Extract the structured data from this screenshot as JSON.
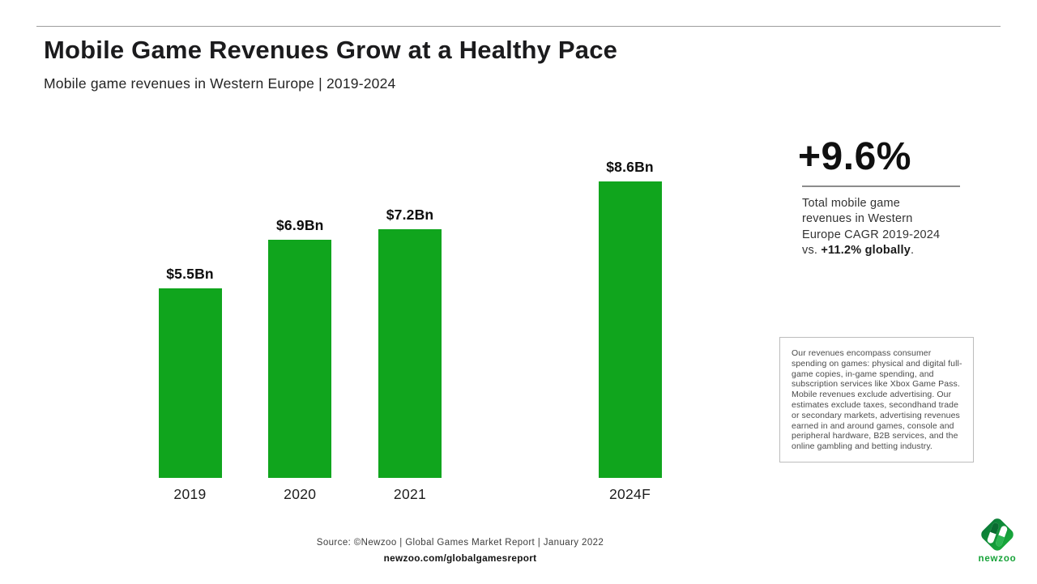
{
  "header": {
    "title": "Mobile Game Revenues Grow at a Healthy Pace",
    "subtitle": "Mobile game revenues in Western Europe | 2019-2024"
  },
  "chart_data": {
    "type": "bar",
    "categories": [
      "2019",
      "2020",
      "2021",
      "2024F"
    ],
    "values": [
      5.5,
      6.9,
      7.2,
      8.6
    ],
    "value_labels": [
      "$5.5Bn",
      "$6.9Bn",
      "$7.2Bn",
      "$8.6Bn"
    ],
    "unit": "USD billions",
    "title": "Mobile game revenues in Western Europe | 2019-2024",
    "xlabel": "",
    "ylabel": "",
    "ylim": [
      0,
      9
    ],
    "grid": false,
    "legend": false,
    "bar_color": "#10a51d",
    "layout_slots": [
      0,
      1,
      2,
      4
    ]
  },
  "stat_panel": {
    "headline": "+9.6%",
    "text_before": "Total mobile game revenues in Western Europe CAGR 2019-2024 vs. ",
    "text_bold": "+11.2% globally",
    "text_after": "."
  },
  "disclaimer": {
    "text": "Our revenues encompass consumer spending on games: physical and digital full-game copies, in-game spending, and subscription services like Xbox Game Pass. Mobile revenues exclude advertising. Our estimates exclude taxes, secondhand trade or secondary markets, advertising revenues earned in and around games, console and peripheral hardware, B2B services, and the online gambling and betting industry."
  },
  "footer": {
    "source": "Source: ©Newzoo | Global Games Market Report | January 2022",
    "link": "newzoo.com/globalgamesreport"
  },
  "logo": {
    "wordmark": "newzoo",
    "brand_green": "#17a339",
    "brand_dark_green": "#0b7c38",
    "brand_mid_green": "#2cb551"
  }
}
